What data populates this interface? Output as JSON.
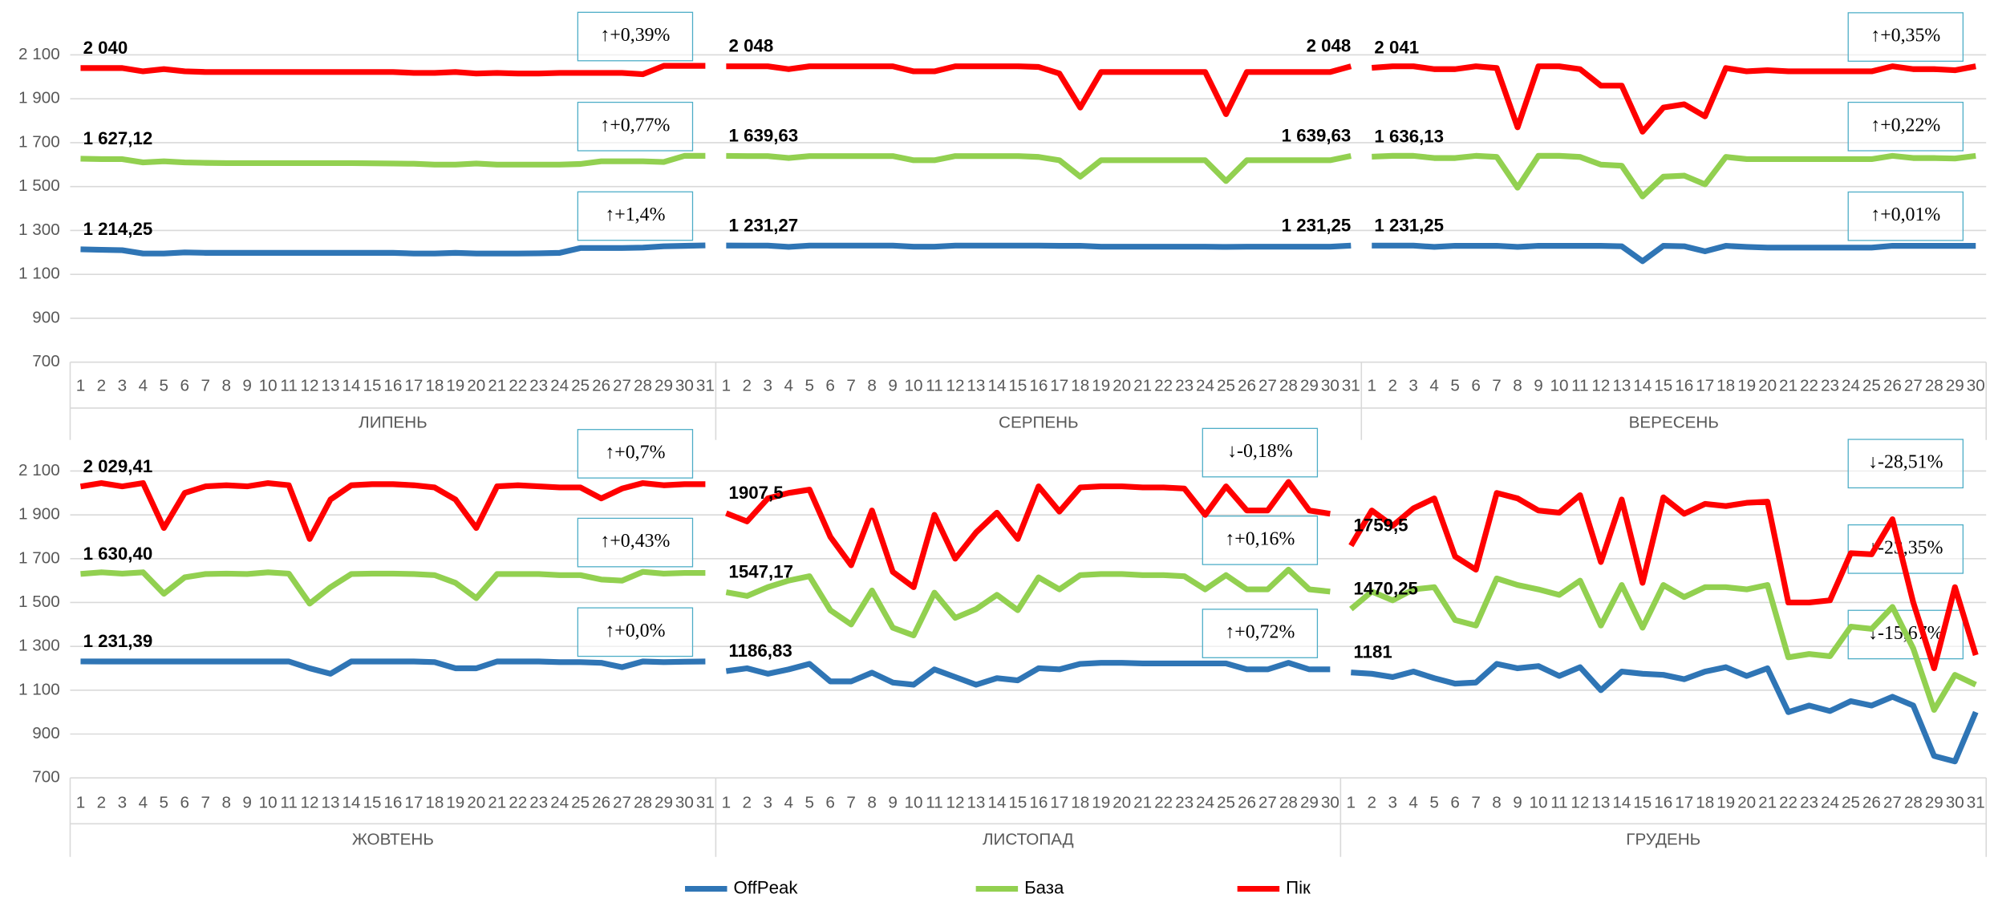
{
  "chart_data": {
    "type": "line",
    "ylim": [
      700,
      2300
    ],
    "yticks": [
      700,
      900,
      {
        "value": 1100,
        "label": "1 100"
      },
      {
        "value": 1300,
        "label": "1 300"
      },
      {
        "value": 1500,
        "label": "1 500"
      },
      {
        "value": 1700,
        "label": "1 700"
      },
      {
        "value": 1900,
        "label": "1 900"
      },
      {
        "value": 2100,
        "label": "2 100"
      }
    ],
    "grid": true,
    "groups": [
      {
        "label": "ЛИПЕНЬ",
        "categories": [
          1,
          2,
          3,
          4,
          5,
          6,
          7,
          8,
          9,
          10,
          11,
          12,
          13,
          14,
          15,
          16,
          17,
          18,
          19,
          20,
          21,
          22,
          23,
          24,
          25,
          26,
          27,
          28,
          29,
          30,
          31
        ]
      },
      {
        "label": "СЕРПЕНЬ",
        "categories": [
          1,
          2,
          3,
          4,
          5,
          6,
          7,
          8,
          9,
          10,
          11,
          12,
          13,
          14,
          15,
          16,
          17,
          18,
          19,
          20,
          21,
          22,
          23,
          24,
          25,
          26,
          27,
          28,
          29,
          30,
          31
        ]
      },
      {
        "label": "ВЕРЕСЕНЬ",
        "categories": [
          1,
          2,
          3,
          4,
          5,
          6,
          7,
          8,
          9,
          10,
          11,
          12,
          13,
          14,
          15,
          16,
          17,
          18,
          19,
          20,
          21,
          22,
          23,
          24,
          25,
          26,
          27,
          28,
          29,
          30
        ]
      },
      {
        "label": "ЖОВТЕНЬ",
        "categories": [
          1,
          2,
          3,
          4,
          5,
          6,
          7,
          8,
          9,
          10,
          11,
          12,
          13,
          14,
          15,
          16,
          17,
          18,
          19,
          20,
          21,
          22,
          23,
          24,
          25,
          26,
          27,
          28,
          29,
          30,
          31
        ]
      },
      {
        "label": "ЛИСТОПАД",
        "categories": [
          1,
          2,
          3,
          4,
          5,
          6,
          7,
          8,
          9,
          10,
          11,
          12,
          13,
          14,
          15,
          16,
          17,
          18,
          19,
          20,
          21,
          22,
          23,
          24,
          25,
          26,
          27,
          28,
          29,
          30
        ]
      },
      {
        "label": "ГРУДЕНЬ",
        "categories": [
          1,
          2,
          3,
          4,
          5,
          6,
          7,
          8,
          9,
          10,
          11,
          12,
          13,
          14,
          15,
          16,
          17,
          18,
          19,
          20,
          21,
          22,
          23,
          24,
          25,
          26,
          27,
          28,
          29,
          30,
          31
        ]
      }
    ],
    "series": [
      {
        "name": "OffPeak",
        "color": "#2f75b5",
        "values": [
          [
            1214.25,
            1212,
            1210,
            1195,
            1195,
            1200,
            1198,
            1198,
            1198,
            1198,
            1198,
            1198,
            1198,
            1198,
            1198,
            1198,
            1195,
            1195,
            1198,
            1195,
            1195,
            1195,
            1196,
            1198,
            1220,
            1220,
            1220,
            1222,
            1228,
            1230,
            1232
          ],
          [
            1231.27,
            1231,
            1231,
            1225,
            1231,
            1231,
            1231,
            1231,
            1231,
            1226,
            1226,
            1231,
            1231,
            1231,
            1231,
            1231,
            1230,
            1230,
            1226,
            1226,
            1226,
            1226,
            1226,
            1226,
            1225,
            1226,
            1226,
            1226,
            1226,
            1226,
            1231.25
          ],
          [
            1231.25,
            1231,
            1231,
            1225,
            1230,
            1230,
            1230,
            1225,
            1230,
            1230,
            1230,
            1230,
            1228,
            1160,
            1230,
            1228,
            1205,
            1230,
            1225,
            1222,
            1222,
            1222,
            1222,
            1222,
            1222,
            1230,
            1230,
            1230,
            1230,
            1230
          ],
          [
            1231.39,
            1231,
            1231,
            1231,
            1231,
            1231,
            1231,
            1231,
            1231,
            1231,
            1231,
            1200,
            1175,
            1231,
            1231,
            1231,
            1231,
            1228,
            1200,
            1200,
            1231,
            1231,
            1231,
            1228,
            1228,
            1225,
            1205,
            1231,
            1228,
            1230,
            1231
          ],
          [
            1186.83,
            1200,
            1175,
            1195,
            1220,
            1140,
            1140,
            1180,
            1135,
            1125,
            1195,
            1160,
            1125,
            1155,
            1145,
            1200,
            1195,
            1220,
            1225,
            1225,
            1222,
            1222,
            1222,
            1222,
            1222,
            1195,
            1195,
            1225,
            1195,
            1195
          ],
          [
            1181,
            1175,
            1160,
            1185,
            1155,
            1130,
            1135,
            1220,
            1200,
            1210,
            1165,
            1205,
            1100,
            1185,
            1175,
            1170,
            1150,
            1185,
            1205,
            1165,
            1200,
            1000,
            1030,
            1005,
            1050,
            1030,
            1070,
            1030,
            800,
            775,
            1000
          ]
        ],
        "first_labels": [
          "1 214,25",
          "1 231,27",
          "1 231,25",
          "1 231,39",
          "1186,83",
          "1181"
        ],
        "last_labels": [
          null,
          "1 231,25",
          null,
          null,
          null,
          null
        ],
        "changes": [
          "↑+1,4%",
          null,
          "↑+0,01%",
          "↑+0,0%",
          "↑+0,72%",
          "↓-15,67%"
        ]
      },
      {
        "name": "База",
        "color": "#92d050",
        "values": [
          [
            1627.12,
            1625,
            1625,
            1610,
            1615,
            1610,
            1608,
            1607,
            1607,
            1607,
            1607,
            1607,
            1607,
            1607,
            1606,
            1605,
            1604,
            1600,
            1600,
            1605,
            1600,
            1600,
            1600,
            1600,
            1603,
            1615,
            1615,
            1615,
            1612,
            1640,
            1640
          ],
          [
            1639.63,
            1639,
            1639,
            1630,
            1639,
            1639,
            1639,
            1639,
            1639,
            1620,
            1620,
            1639,
            1639,
            1639,
            1639,
            1635,
            1620,
            1545,
            1620,
            1620,
            1620,
            1620,
            1620,
            1620,
            1525,
            1620,
            1620,
            1620,
            1620,
            1620,
            1639.63
          ],
          [
            1636.13,
            1640,
            1640,
            1630,
            1630,
            1640,
            1635,
            1495,
            1640,
            1640,
            1635,
            1600,
            1595,
            1455,
            1545,
            1550,
            1510,
            1635,
            1625,
            1625,
            1625,
            1625,
            1625,
            1625,
            1625,
            1640,
            1630,
            1630,
            1628,
            1640
          ],
          [
            1630.4,
            1638,
            1632,
            1638,
            1540,
            1615,
            1630,
            1632,
            1630,
            1638,
            1632,
            1495,
            1570,
            1630,
            1632,
            1632,
            1630,
            1625,
            1590,
            1520,
            1630,
            1630,
            1630,
            1625,
            1625,
            1605,
            1600,
            1640,
            1632,
            1635,
            1635
          ],
          [
            1547.17,
            1530,
            1570,
            1600,
            1620,
            1465,
            1400,
            1555,
            1385,
            1350,
            1545,
            1430,
            1470,
            1535,
            1465,
            1615,
            1560,
            1625,
            1630,
            1630,
            1625,
            1625,
            1620,
            1560,
            1625,
            1560,
            1560,
            1650,
            1560,
            1550
          ],
          [
            1470.25,
            1550,
            1510,
            1560,
            1570,
            1420,
            1395,
            1610,
            1580,
            1560,
            1535,
            1600,
            1395,
            1580,
            1385,
            1580,
            1525,
            1570,
            1570,
            1560,
            1580,
            1250,
            1265,
            1255,
            1390,
            1380,
            1480,
            1290,
            1010,
            1170,
            1125
          ]
        ],
        "first_labels": [
          "1 627,12",
          "1 639,63",
          "1 636,13",
          "1 630,40",
          "1547,17",
          "1470,25"
        ],
        "last_labels": [
          null,
          "1 639,63",
          null,
          null,
          null,
          null
        ],
        "changes": [
          "↑+0,77%",
          null,
          "↑+0,22%",
          "↑+0,43%",
          "↑+0,16%",
          "↓-23,35%"
        ]
      },
      {
        "name": "Пік",
        "color": "#ff0000",
        "values": [
          [
            2040,
            2040,
            2040,
            2025,
            2035,
            2025,
            2022,
            2022,
            2022,
            2022,
            2022,
            2022,
            2022,
            2022,
            2022,
            2022,
            2018,
            2018,
            2022,
            2015,
            2018,
            2015,
            2015,
            2018,
            2018,
            2018,
            2018,
            2012,
            2050,
            2050,
            2050
          ],
          [
            2048,
            2048,
            2048,
            2035,
            2048,
            2048,
            2048,
            2048,
            2048,
            2025,
            2025,
            2048,
            2048,
            2048,
            2048,
            2045,
            2015,
            1860,
            2022,
            2022,
            2022,
            2022,
            2022,
            2022,
            1830,
            2022,
            2022,
            2022,
            2022,
            2022,
            2048
          ],
          [
            2041,
            2048,
            2048,
            2035,
            2035,
            2048,
            2040,
            1770,
            2048,
            2048,
            2035,
            1960,
            1960,
            1750,
            1860,
            1875,
            1820,
            2040,
            2025,
            2030,
            2025,
            2025,
            2025,
            2025,
            2025,
            2048,
            2035,
            2035,
            2030,
            2048
          ],
          [
            2029.41,
            2045,
            2030,
            2045,
            1840,
            2000,
            2030,
            2035,
            2030,
            2045,
            2035,
            1790,
            1970,
            2035,
            2040,
            2040,
            2035,
            2025,
            1970,
            1840,
            2030,
            2035,
            2030,
            2025,
            2025,
            1975,
            2020,
            2045,
            2035,
            2040,
            2040
          ],
          [
            1907.5,
            1870,
            1975,
            2000,
            2015,
            1800,
            1670,
            1920,
            1640,
            1570,
            1900,
            1700,
            1820,
            1910,
            1790,
            2030,
            1915,
            2025,
            2030,
            2030,
            2025,
            2025,
            2020,
            1900,
            2030,
            1920,
            1920,
            2050,
            1920,
            1905
          ],
          [
            1759.5,
            1920,
            1850,
            1930,
            1975,
            1710,
            1650,
            2000,
            1975,
            1920,
            1910,
            1990,
            1685,
            1970,
            1590,
            1980,
            1905,
            1950,
            1940,
            1955,
            1960,
            1500,
            1500,
            1510,
            1725,
            1720,
            1880,
            1500,
            1200,
            1570,
            1260
          ]
        ],
        "first_labels": [
          "2 040",
          "2 048",
          "2 041",
          "2 029,41",
          "1907,5",
          "1759,5"
        ],
        "last_labels": [
          null,
          "2 048",
          null,
          null,
          null,
          null
        ],
        "changes": [
          "↑+0,39%",
          null,
          "↑+0,35%",
          "↑+0,7%",
          "↓-0,18%",
          "↓-28,51%"
        ]
      }
    ]
  }
}
